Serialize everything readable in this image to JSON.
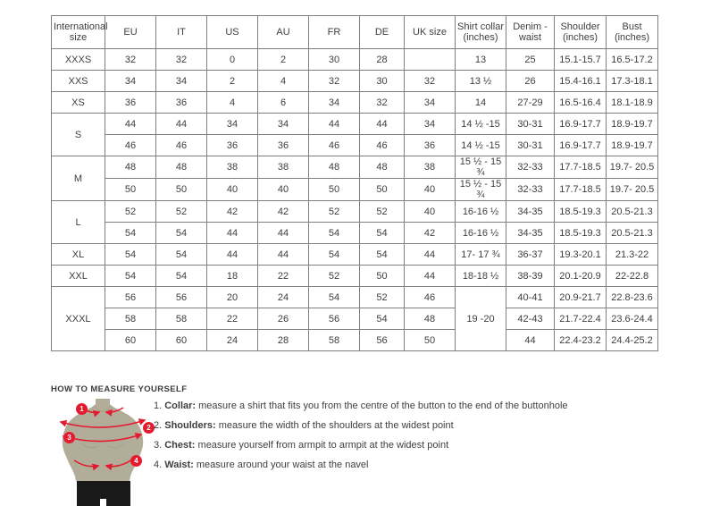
{
  "colors": {
    "accent_red": "#e41b2f",
    "mannequin": "#b2ad99",
    "mannequin_shade": "#a49f8a",
    "shorts": "#1a1a1a",
    "table_border": "#7f7f7f",
    "text": "#3e3e3e"
  },
  "table": {
    "headers": [
      "International size",
      "EU",
      "IT",
      "US",
      "AU",
      "FR",
      "DE",
      "UK size",
      "Shirt collar (inches)",
      "Denim - waist",
      "Shoulder (inches)",
      "Bust (inches)"
    ],
    "rows": [
      [
        "XXXS",
        "32",
        "32",
        "0",
        "2",
        "30",
        "28",
        "",
        "13",
        "25",
        "15.1-15.7",
        "16.5-17.2"
      ],
      [
        "XXS",
        "34",
        "34",
        "2",
        "4",
        "32",
        "30",
        "32",
        "13 ½",
        "26",
        "15.4-16.1",
        "17.3-18.1"
      ],
      [
        "XS",
        "36",
        "36",
        "4",
        "6",
        "34",
        "32",
        "34",
        "14",
        "27-29",
        "16.5-16.4",
        "18.1-18.9"
      ],
      [
        {
          "text": "S",
          "rowspan": 2
        },
        "44",
        "44",
        "34",
        "34",
        "44",
        "44",
        "34",
        "14 ½ -15",
        "30-31",
        "16.9-17.7",
        "18.9-19.7"
      ],
      [
        null,
        "46",
        "46",
        "36",
        "36",
        "46",
        "46",
        "36",
        "14 ½ -15",
        "30-31",
        "16.9-17.7",
        "18.9-19.7"
      ],
      [
        {
          "text": "M",
          "rowspan": 2
        },
        "48",
        "48",
        "38",
        "38",
        "48",
        "48",
        "38",
        "15 ½ - 15 ¾",
        "32-33",
        "17.7-18.5",
        "19.7- 20.5"
      ],
      [
        null,
        "50",
        "50",
        "40",
        "40",
        "50",
        "50",
        "40",
        "15 ½ - 15 ¾",
        "32-33",
        "17.7-18.5",
        "19.7- 20.5"
      ],
      [
        {
          "text": "L",
          "rowspan": 2
        },
        "52",
        "52",
        "42",
        "42",
        "52",
        "52",
        "40",
        "16-16 ½",
        "34-35",
        "18.5-19.3",
        "20.5-21.3"
      ],
      [
        null,
        "54",
        "54",
        "44",
        "44",
        "54",
        "54",
        "42",
        "16-16 ½",
        "34-35",
        "18.5-19.3",
        "20.5-21.3"
      ],
      [
        "XL",
        "54",
        "54",
        "44",
        "44",
        "54",
        "54",
        "44",
        "17- 17 ¾",
        "36-37",
        "19.3-20.1",
        "21.3-22"
      ],
      [
        "XXL",
        "54",
        "54",
        "18",
        "22",
        "52",
        "50",
        "44",
        "18-18 ½",
        "38-39",
        "20.1-20.9",
        "22-22.8"
      ],
      [
        {
          "text": "XXXL",
          "rowspan": 3
        },
        "56",
        "56",
        "20",
        "24",
        "54",
        "52",
        "46",
        {
          "text": "19 -20",
          "rowspan": 3
        },
        "40-41",
        "20.9-21.7",
        "22.8-23.6"
      ],
      [
        null,
        "58",
        "58",
        "22",
        "26",
        "56",
        "54",
        "48",
        null,
        "42-43",
        "21.7-22.4",
        "23.6-24.4"
      ],
      [
        null,
        "60",
        "60",
        "24",
        "28",
        "58",
        "56",
        "50",
        null,
        "44",
        "22.4-23.2",
        "24.4-25.2"
      ]
    ]
  },
  "measure": {
    "title": "HOW TO MEASURE YOURSELF",
    "steps": [
      {
        "num": "1",
        "label": "Collar",
        "text": "measure a shirt that fits you from the centre of the button to the end of the buttonhole"
      },
      {
        "num": "2",
        "label": "Shoulders",
        "text": "measure the width of the shoulders at the widest point"
      },
      {
        "num": "3",
        "label": "Chest",
        "text": "measure yourself from armpit to armpit at the widest point"
      },
      {
        "num": "4",
        "label": "Waist",
        "text": "measure around your waist at the navel"
      }
    ]
  }
}
